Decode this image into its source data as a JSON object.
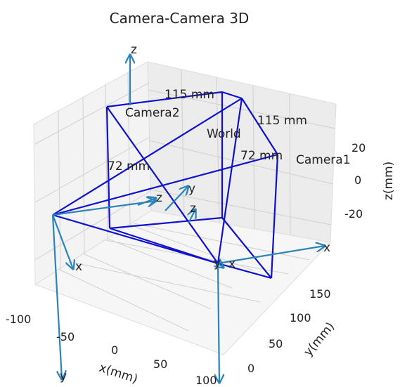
{
  "chart_data": {
    "type": "3d-line",
    "title": "Camera-Camera 3D",
    "xlabel": "x(mm)",
    "ylabel": "y(mm)",
    "zlabel": "z(mm)",
    "xlim": [
      -100,
      100
    ],
    "ylim": [
      0,
      180
    ],
    "zlim": [
      -40,
      40
    ],
    "x_ticks": [
      "-100",
      "-50",
      "0",
      "50",
      "100"
    ],
    "y_ticks": [
      "0",
      "50",
      "100",
      "150"
    ],
    "z_ticks": [
      "20",
      "0",
      "-20"
    ],
    "grid": true,
    "frame_color": "#1010d0",
    "axis_arrow_color": "#2b83ba",
    "annotations": [
      "115 mm",
      "115 mm",
      "72 mm",
      "72 mm"
    ],
    "frames": [
      {
        "name": "Camera2",
        "axis_labels": [
          "z",
          "x",
          "y"
        ]
      },
      {
        "name": "World",
        "axis_labels": [
          "z",
          "x",
          "y"
        ]
      },
      {
        "name": "Camera1",
        "axis_labels": [
          "z",
          "x",
          "y"
        ]
      }
    ]
  }
}
